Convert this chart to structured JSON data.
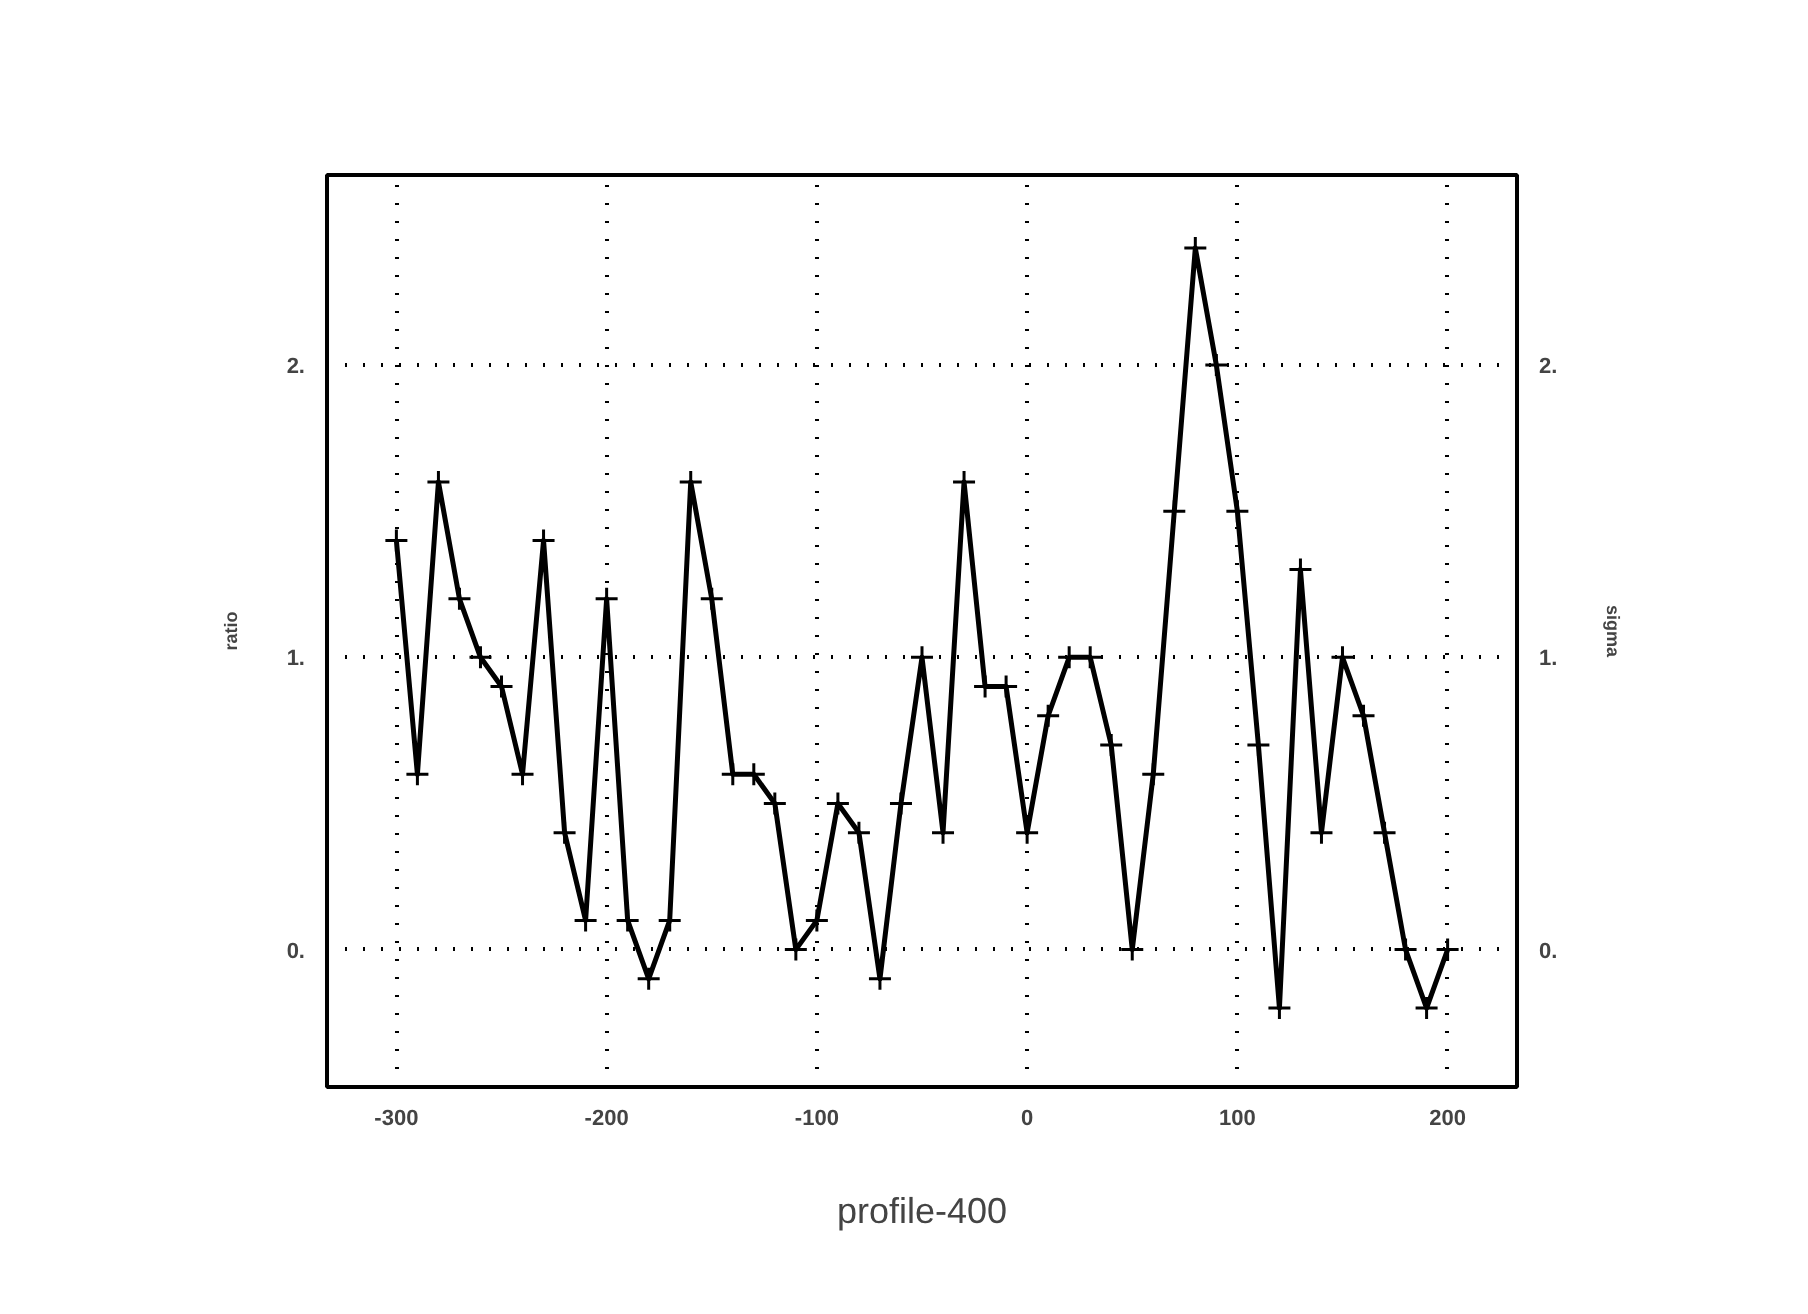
{
  "chart_data": {
    "type": "line",
    "xlabel": "profile-400",
    "ylabel": "ratio",
    "y2label": "sigma",
    "x": [
      -300,
      -290,
      -280,
      -270,
      -260,
      -250,
      -240,
      -230,
      -220,
      -210,
      -200,
      -190,
      -180,
      -170,
      -160,
      -150,
      -140,
      -130,
      -120,
      -110,
      -100,
      -90,
      -80,
      -70,
      -60,
      -50,
      -40,
      -30,
      -20,
      -10,
      0,
      10,
      20,
      30,
      40,
      50,
      60,
      70,
      80,
      90,
      100,
      110,
      120,
      130,
      140,
      150,
      160,
      170,
      180,
      190,
      200
    ],
    "series": [
      {
        "color": "#000000",
        "values": [
          1.4,
          0.6,
          1.6,
          1.2,
          1.0,
          0.9,
          0.6,
          1.4,
          0.4,
          0.1,
          1.2,
          0.1,
          -0.1,
          0.1,
          1.6,
          1.2,
          0.6,
          0.6,
          0.5,
          0.0,
          0.1,
          0.5,
          0.4,
          -0.1,
          0.5,
          1.0,
          0.4,
          1.6,
          0.9,
          0.9,
          0.4,
          0.8,
          1.0,
          1.0,
          0.7,
          0.0,
          0.6,
          1.5,
          2.4,
          2.0,
          1.5,
          0.7,
          -0.2,
          1.3,
          0.4,
          1.0,
          0.8,
          0.4,
          0.0,
          -0.2,
          0.0
        ]
      }
    ],
    "xlim": [
      -333,
      233
    ],
    "xticks": [
      -300,
      -200,
      -100,
      0,
      100,
      200
    ],
    "ylim": [
      -0.47,
      2.65
    ],
    "yticks": [
      {
        "value": 0,
        "label": "0."
      },
      {
        "value": 1,
        "label": "1."
      },
      {
        "value": 2,
        "label": "2."
      }
    ],
    "y2lim": [
      -0.47,
      2.65
    ],
    "y2ticks": [
      {
        "value": 0,
        "label": "0."
      },
      {
        "value": 1,
        "label": "1."
      },
      {
        "value": 2,
        "label": "2."
      }
    ],
    "grid": true,
    "marker": "cross",
    "line_style": "solid"
  }
}
